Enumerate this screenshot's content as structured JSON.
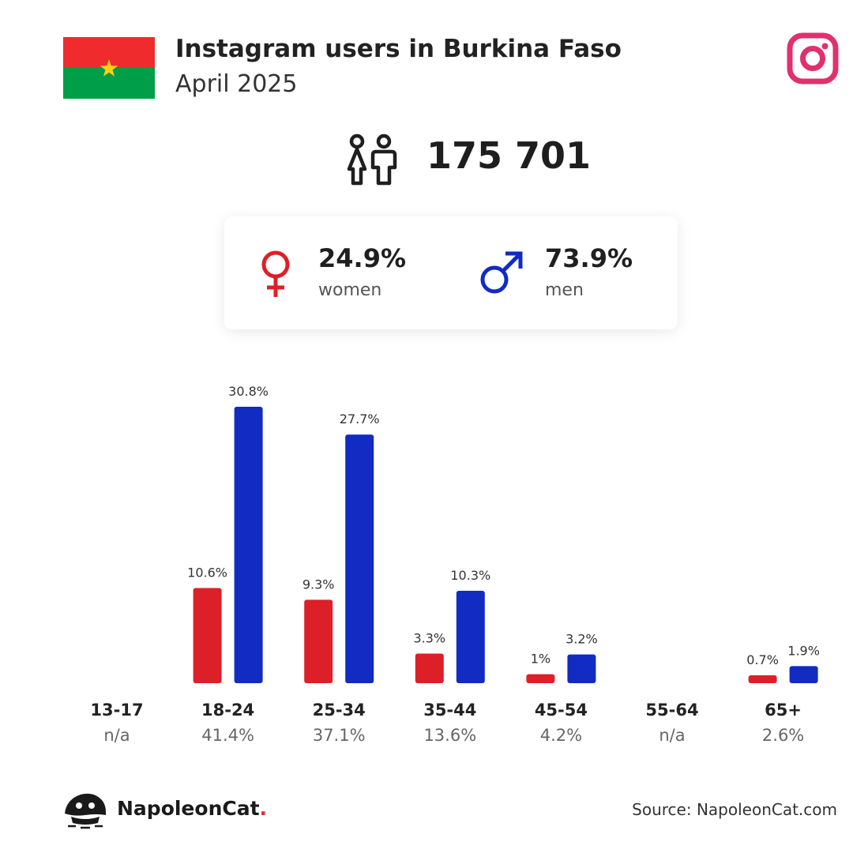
{
  "header": {
    "title": "Instagram users in Burkina Faso",
    "subtitle": "April 2025"
  },
  "total_users": "175 701",
  "gender": {
    "women_pct": "24.9%",
    "women_label": "women",
    "men_pct": "73.9%",
    "men_label": "men"
  },
  "colors": {
    "women": "#dd2028",
    "men": "#112bc3",
    "instagram": "#e1306c",
    "flag_red": "#ef2b2d",
    "flag_green": "#009e49",
    "flag_star": "#fcd116"
  },
  "chart_data": {
    "type": "bar",
    "categories": [
      "13-17",
      "18-24",
      "25-34",
      "35-44",
      "45-54",
      "55-64",
      "65+"
    ],
    "category_totals": [
      "n/a",
      "41.4%",
      "37.1%",
      "13.6%",
      "4.2%",
      "n/a",
      "2.6%"
    ],
    "series": [
      {
        "key": "women",
        "values": [
          null,
          10.6,
          9.3,
          3.3,
          1,
          null,
          0.7
        ],
        "labels": [
          "",
          "10.6%",
          "9.3%",
          "3.3%",
          "1%",
          "",
          "0.7%"
        ]
      },
      {
        "key": "men",
        "values": [
          null,
          30.8,
          27.7,
          10.3,
          3.2,
          null,
          1.9
        ],
        "labels": [
          "",
          "30.8%",
          "27.7%",
          "10.3%",
          "3.2%",
          "",
          "1.9%"
        ]
      }
    ],
    "ylim": [
      0,
      30.8
    ]
  },
  "footer": {
    "brand_name": "NapoleonCat",
    "brand_dot": ".",
    "source": "Source: NapoleonCat.com"
  }
}
